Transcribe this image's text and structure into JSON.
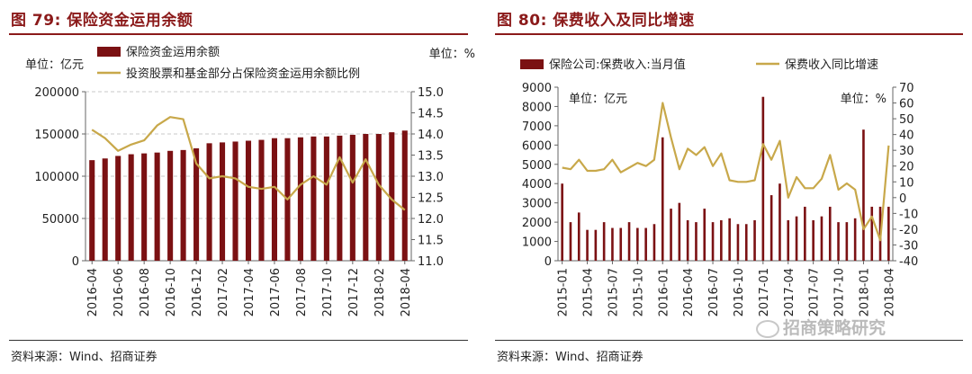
{
  "left": {
    "title": "图 79:  保险资金运用余额",
    "source": "资料来源：Wind、招商证券",
    "legend_bar": "保险资金运用余额",
    "legend_line": "投资股票和基金部分占保险资金运用余额比例",
    "unit_left": "单位：亿元",
    "unit_right": "单位：%"
  },
  "right": {
    "title": "图 80:  保费收入及同比增速",
    "source": "资料来源：Wind、招商证券",
    "legend_bar": "保险公司:保费收入:当月值",
    "legend_line": "保费收入同比增速",
    "unit_left": "单位：亿元",
    "unit_right": "单位：%"
  },
  "watermark": "招商策略研究",
  "colors": {
    "bar": "#7b1113",
    "line": "#c8a84a",
    "axis": "#666666",
    "grid": "#c8c8c8"
  },
  "chart_data": [
    {
      "type": "bar",
      "combo": "bar+line",
      "x": [
        "2016-04",
        "2016-05",
        "2016-06",
        "2016-07",
        "2016-08",
        "2016-09",
        "2016-10",
        "2016-11",
        "2016-12",
        "2017-01",
        "2017-02",
        "2017-03",
        "2017-04",
        "2017-05",
        "2017-06",
        "2017-07",
        "2017-08",
        "2017-09",
        "2017-10",
        "2017-11",
        "2017-12",
        "2018-01",
        "2018-02",
        "2018-03",
        "2018-04"
      ],
      "xticks": [
        "2016-04",
        "2016-06",
        "2016-08",
        "2016-10",
        "2016-12",
        "2017-02",
        "2017-04",
        "2017-06",
        "2017-08",
        "2017-10",
        "2017-12",
        "2018-02",
        "2018-04"
      ],
      "series": [
        {
          "name": "保险资金运用余额",
          "kind": "bar",
          "axis": "left",
          "values": [
            119000,
            121000,
            124000,
            126000,
            127000,
            128000,
            130000,
            131000,
            133000,
            139000,
            140000,
            141000,
            142000,
            143000,
            145000,
            145000,
            146000,
            147000,
            147000,
            148000,
            149000,
            150000,
            150000,
            152000,
            154000
          ]
        },
        {
          "name": "投资股票和基金部分占保险资金运用余额比例",
          "kind": "line",
          "axis": "right",
          "values": [
            14.1,
            13.9,
            13.6,
            13.75,
            13.85,
            14.2,
            14.4,
            14.35,
            13.3,
            12.95,
            13.0,
            12.95,
            12.75,
            12.7,
            12.75,
            12.45,
            12.8,
            13.0,
            12.8,
            13.45,
            12.85,
            13.4,
            12.8,
            12.45,
            12.2
          ]
        }
      ],
      "ylim_left": [
        0,
        200000
      ],
      "yticks_left": [
        "0",
        "50000",
        "100000",
        "150000",
        "200000"
      ],
      "ylim_right": [
        11.0,
        15.0
      ],
      "yticks_right": [
        "11.0",
        "11.5",
        "12.0",
        "12.5",
        "13.0",
        "13.5",
        "14.0",
        "14.5",
        "15.0"
      ],
      "grid": true
    },
    {
      "type": "bar",
      "combo": "bar+line",
      "x": [
        "2015-01",
        "2015-02",
        "2015-03",
        "2015-04",
        "2015-05",
        "2015-06",
        "2015-07",
        "2015-08",
        "2015-09",
        "2015-10",
        "2015-11",
        "2015-12",
        "2016-01",
        "2016-02",
        "2016-03",
        "2016-04",
        "2016-05",
        "2016-06",
        "2016-07",
        "2016-08",
        "2016-09",
        "2016-10",
        "2016-11",
        "2016-12",
        "2017-01",
        "2017-02",
        "2017-03",
        "2017-04",
        "2017-05",
        "2017-06",
        "2017-07",
        "2017-08",
        "2017-09",
        "2017-10",
        "2017-11",
        "2017-12",
        "2018-01",
        "2018-02",
        "2018-03",
        "2018-04"
      ],
      "xticks": [
        "2015-01",
        "2015-04",
        "2015-07",
        "2015-10",
        "2016-01",
        "2016-04",
        "2016-07",
        "2016-10",
        "2017-01",
        "2017-04",
        "2017-07",
        "2017-10",
        "2018-01",
        "2018-04"
      ],
      "series": [
        {
          "name": "保险公司:保费收入:当月值",
          "kind": "bar",
          "axis": "left",
          "values": [
            4000,
            2000,
            2500,
            1600,
            1600,
            2000,
            1700,
            1700,
            2000,
            1700,
            1700,
            1900,
            6400,
            2700,
            3000,
            2100,
            2000,
            2700,
            2000,
            2100,
            2200,
            1900,
            1900,
            2100,
            8500,
            3400,
            4000,
            2100,
            2300,
            2800,
            2100,
            2300,
            2800,
            2000,
            2000,
            2200,
            6800,
            2800,
            2800,
            2800
          ]
        },
        {
          "name": "保费收入同比增速",
          "kind": "line",
          "axis": "right",
          "values": [
            19,
            18,
            24,
            17,
            17,
            18,
            24,
            16,
            19,
            22,
            20,
            24,
            60,
            38,
            18,
            31,
            27,
            32,
            20,
            28,
            11,
            10,
            10,
            11,
            34,
            24,
            36,
            0,
            13,
            6,
            6,
            12,
            27,
            5,
            9,
            5,
            -20,
            -12,
            -27,
            33
          ]
        }
      ],
      "ylim_left": [
        0,
        9000
      ],
      "yticks_left": [
        "0",
        "1000",
        "2000",
        "3000",
        "4000",
        "5000",
        "6000",
        "7000",
        "8000",
        "9000"
      ],
      "ylim_right": [
        -40,
        70
      ],
      "yticks_right": [
        "-40",
        "-30",
        "-20",
        "-10",
        "0",
        "10",
        "20",
        "30",
        "40",
        "50",
        "60",
        "70"
      ],
      "grid": false
    }
  ]
}
